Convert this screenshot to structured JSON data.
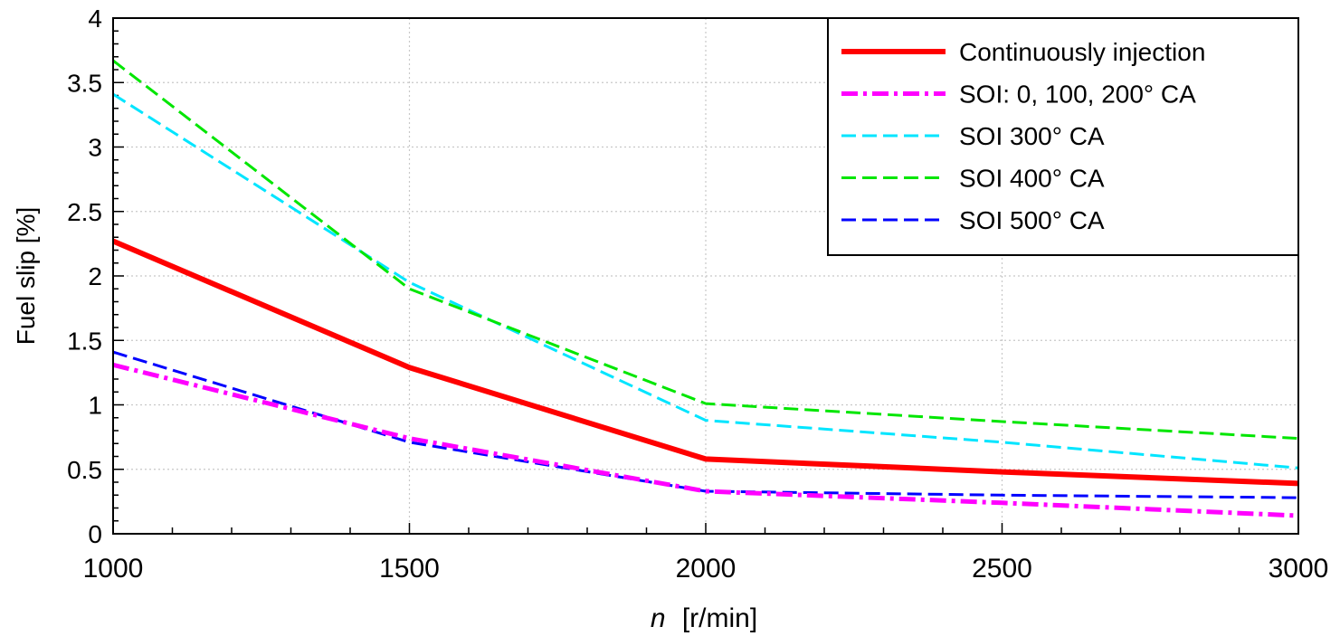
{
  "chart_data": {
    "type": "line",
    "xlabel_var": "n",
    "xlabel_unit": "[r/min]",
    "ylabel": "Fuel slip [%]",
    "xlim": [
      1000,
      3000
    ],
    "ylim": [
      0,
      4
    ],
    "xticks": [
      1000,
      1500,
      2000,
      2500,
      3000
    ],
    "yticks": [
      0,
      0.5,
      1,
      1.5,
      2,
      2.5,
      3,
      3.5,
      4
    ],
    "xtick_labels": [
      "1000",
      "1500",
      "2000",
      "2500",
      "3000"
    ],
    "ytick_labels": [
      "0",
      "0.5",
      "1",
      "1.5",
      "2",
      "2.5",
      "3",
      "3.5",
      "4"
    ],
    "grid": true,
    "legend_position": "top-right",
    "series": [
      {
        "name": "Continuously injection",
        "color": "#ff0000",
        "style": "solid",
        "x": [
          1000,
          1500,
          2000,
          2500,
          3000
        ],
        "y": [
          2.27,
          1.29,
          0.58,
          0.48,
          0.39
        ]
      },
      {
        "name": "SOI: 0, 100, 200° CA",
        "color": "#ff00ff",
        "style": "dashdot",
        "x": [
          1000,
          1500,
          2000,
          2500,
          3000
        ],
        "y": [
          1.31,
          0.74,
          0.33,
          0.24,
          0.14
        ]
      },
      {
        "name": "SOI 300° CA",
        "color": "#00e5ff",
        "style": "dashed",
        "x": [
          1000,
          1500,
          2000,
          2500,
          3000
        ],
        "y": [
          3.41,
          1.95,
          0.88,
          0.71,
          0.51
        ]
      },
      {
        "name": "SOI 400° CA",
        "color": "#00e600",
        "style": "dashed",
        "x": [
          1000,
          1500,
          2000,
          2500,
          3000
        ],
        "y": [
          3.67,
          1.9,
          1.01,
          0.87,
          0.74
        ]
      },
      {
        "name": "SOI 500° CA",
        "color": "#0000ff",
        "style": "dashed",
        "x": [
          1000,
          1500,
          2000,
          2500,
          3000
        ],
        "y": [
          1.41,
          0.71,
          0.33,
          0.3,
          0.28
        ]
      }
    ]
  }
}
